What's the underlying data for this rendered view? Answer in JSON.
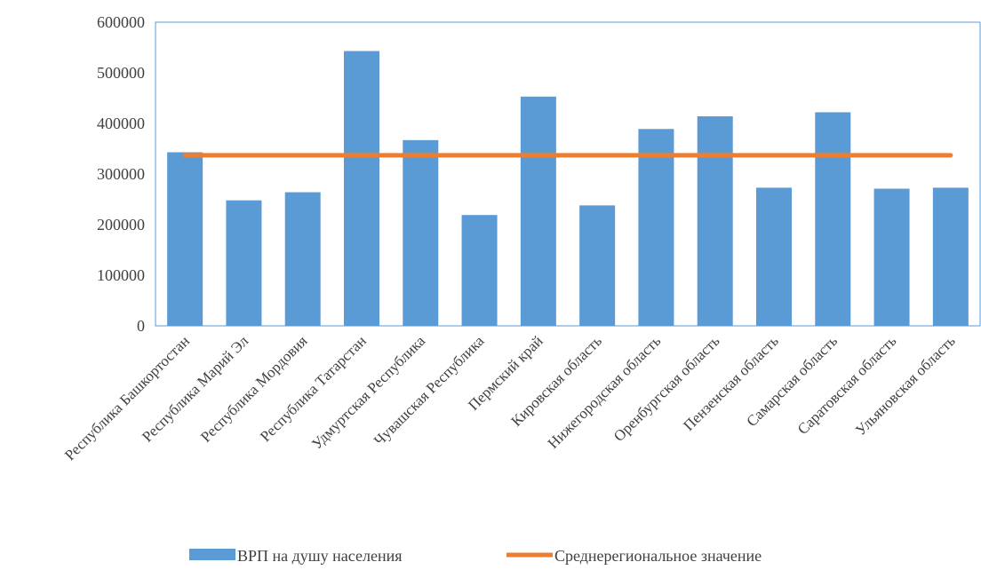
{
  "chart_data": {
    "type": "bar",
    "categories": [
      "Республика Башкортостан",
      "Республика Марий Эл",
      "Республика Мордовия",
      "Республика Татарстан",
      "Удмуртская Республика",
      "Чувашская Республика",
      "Пермский край",
      "Кировская область",
      "Нижегородская область",
      "Оренбургская область",
      "Пензенская область",
      "Самарская область",
      "Саратовская область",
      "Ульяновская область"
    ],
    "series": [
      {
        "name": "ВРП на душу населения",
        "type": "bar",
        "color": "#5B9BD5",
        "values": [
          343000,
          248000,
          264000,
          543000,
          367000,
          219000,
          453000,
          238000,
          389000,
          414000,
          273000,
          422000,
          271000,
          273000
        ]
      },
      {
        "name": "Среднерегиональное значение",
        "type": "line",
        "color": "#ED7D31",
        "values": [
          337000,
          337000,
          337000,
          337000,
          337000,
          337000,
          337000,
          337000,
          337000,
          337000,
          337000,
          337000,
          337000,
          337000
        ]
      }
    ],
    "yticks": [
      "0",
      "100000",
      "200000",
      "300000",
      "400000",
      "500000",
      "600000"
    ],
    "ylim": [
      0,
      600000
    ],
    "legend": "bottom",
    "grid": false
  }
}
